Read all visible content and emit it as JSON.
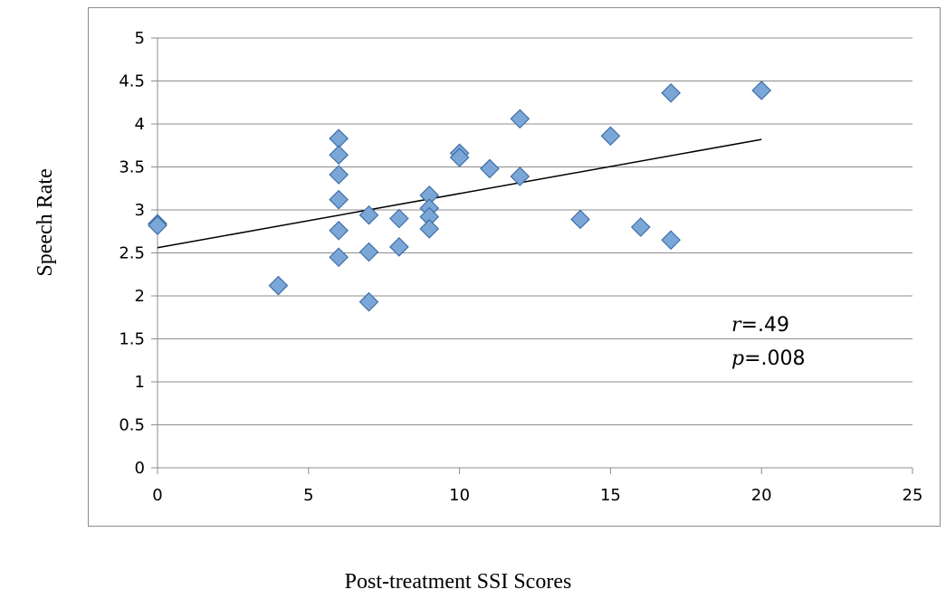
{
  "chart_data": {
    "type": "scatter",
    "title": "",
    "xlabel": "Post-treatment SSI Scores",
    "ylabel": "Speech Rate",
    "xlim": [
      0,
      25
    ],
    "ylim": [
      0,
      5
    ],
    "x_ticks": [
      "0",
      "5",
      "10",
      "15",
      "20",
      "25"
    ],
    "y_ticks": [
      "0",
      "0.5",
      "1",
      "1.5",
      "2",
      "2.5",
      "3",
      "3.5",
      "4",
      "4.5",
      "5"
    ],
    "grid": "horizontal",
    "legend": "none",
    "marker": "diamond",
    "marker_color": "#7ba7d8",
    "points": [
      {
        "x": 0,
        "y": 2.84
      },
      {
        "x": 0,
        "y": 2.82
      },
      {
        "x": 4,
        "y": 2.12
      },
      {
        "x": 6,
        "y": 3.83
      },
      {
        "x": 6,
        "y": 3.64
      },
      {
        "x": 6,
        "y": 3.41
      },
      {
        "x": 6,
        "y": 3.12
      },
      {
        "x": 6,
        "y": 2.76
      },
      {
        "x": 6,
        "y": 2.45
      },
      {
        "x": 7,
        "y": 2.94
      },
      {
        "x": 7,
        "y": 2.51
      },
      {
        "x": 7,
        "y": 1.93
      },
      {
        "x": 8,
        "y": 2.9
      },
      {
        "x": 8,
        "y": 2.57
      },
      {
        "x": 9,
        "y": 3.17
      },
      {
        "x": 9,
        "y": 3.02
      },
      {
        "x": 9,
        "y": 2.92
      },
      {
        "x": 9,
        "y": 2.78
      },
      {
        "x": 10,
        "y": 3.66
      },
      {
        "x": 10,
        "y": 3.61
      },
      {
        "x": 11,
        "y": 3.48
      },
      {
        "x": 12,
        "y": 4.06
      },
      {
        "x": 12,
        "y": 3.39
      },
      {
        "x": 14,
        "y": 2.89
      },
      {
        "x": 15,
        "y": 3.86
      },
      {
        "x": 16,
        "y": 2.8
      },
      {
        "x": 17,
        "y": 4.36
      },
      {
        "x": 17,
        "y": 2.65
      },
      {
        "x": 20,
        "y": 4.39
      }
    ],
    "trendline": {
      "x": [
        0,
        20
      ],
      "y": [
        2.56,
        3.82
      ]
    },
    "annotations": [
      {
        "symbol": "r",
        "rest": "=.49"
      },
      {
        "symbol": "p",
        "rest": "=.008"
      }
    ]
  }
}
